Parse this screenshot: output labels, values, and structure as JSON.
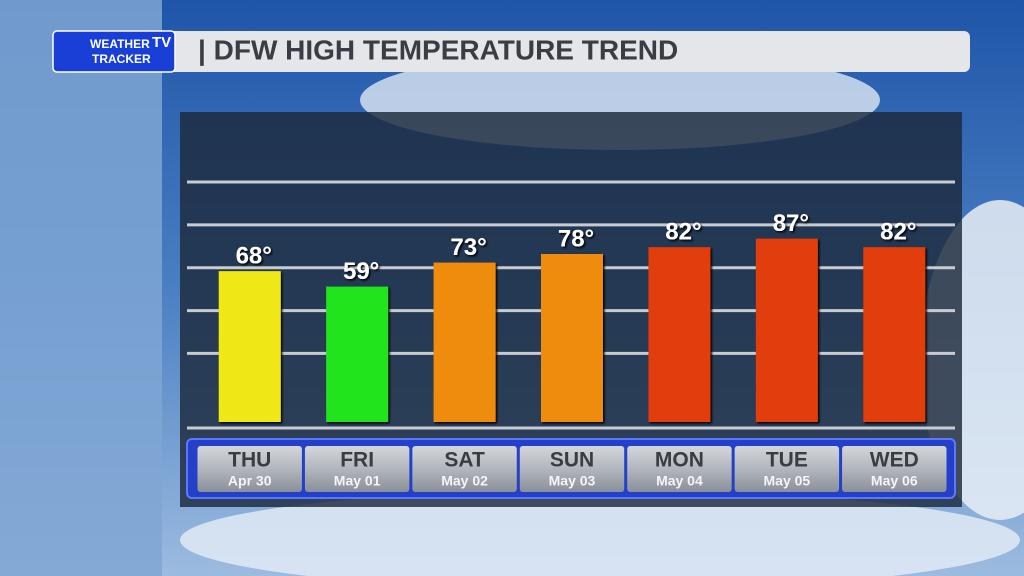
{
  "header": {
    "logo_weather": "WEATHER",
    "logo_tv": "TV",
    "logo_tracker": "TRACKER"
  },
  "chart_data": {
    "type": "bar",
    "title": "| DFW HIGH TEMPERATURE TREND",
    "categories": [
      "THU",
      "FRI",
      "SAT",
      "SUN",
      "MON",
      "TUE",
      "WED"
    ],
    "dates": [
      "Apr 30",
      "May 01",
      "May 02",
      "May 03",
      "May 04",
      "May 05",
      "May 06"
    ],
    "values": [
      68,
      59,
      73,
      78,
      82,
      87,
      82
    ],
    "value_labels": [
      "68°",
      "59°",
      "73°",
      "78°",
      "82°",
      "87°",
      "82°"
    ],
    "colors": [
      "#f0e812",
      "#24e41c",
      "#f08c0c",
      "#f08c0c",
      "#e23c08",
      "#e23c08",
      "#e23c08"
    ],
    "ylim": [
      -20,
      120
    ],
    "yticks": [
      20,
      45,
      70,
      95,
      120
    ],
    "grid": true
  }
}
